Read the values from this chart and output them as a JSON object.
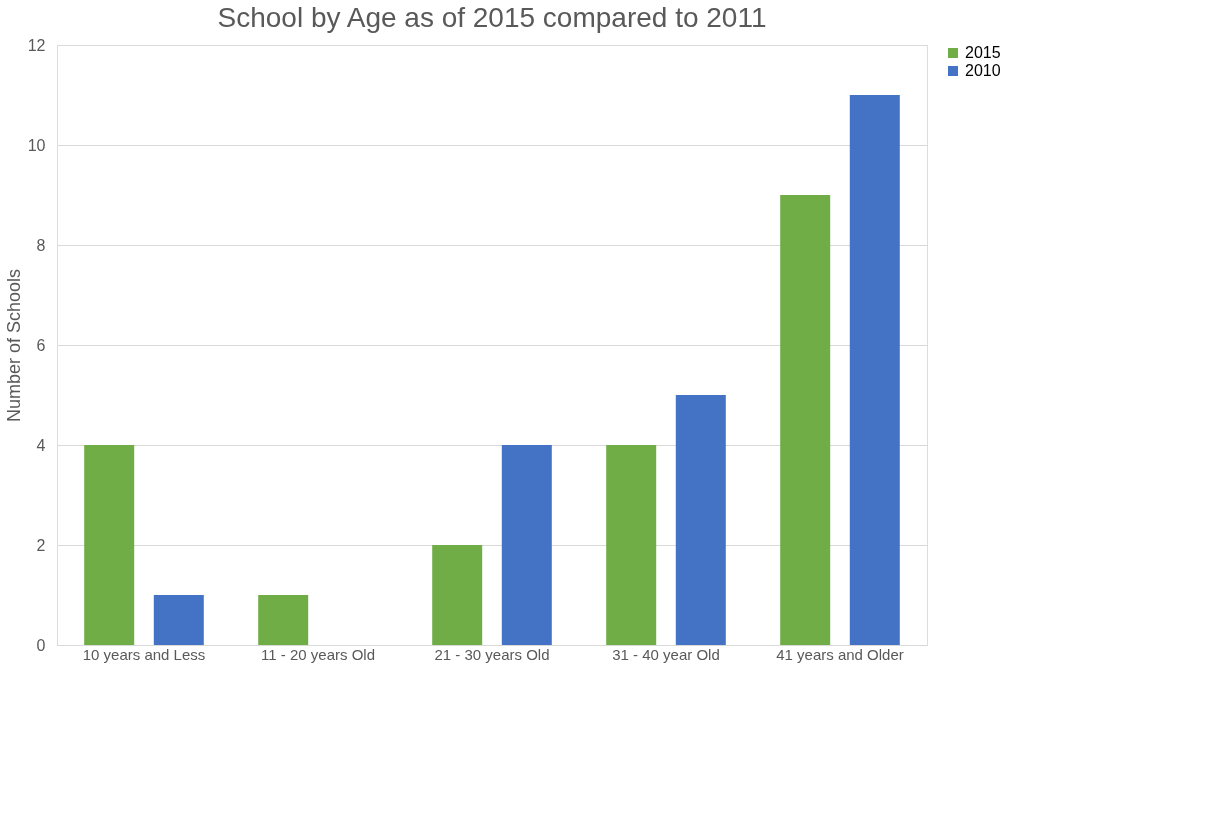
{
  "chart_data": {
    "type": "bar",
    "title": "School by Age as of 2015 compared to 2011",
    "ylabel": "Number of Schools",
    "categories": [
      "10 years and Less",
      "11 - 20 years Old",
      "21 - 30 years Old",
      "31 - 40 year Old",
      "41 years and Older"
    ],
    "series": [
      {
        "name": "2015",
        "color": "#70ad47",
        "values": [
          4,
          1,
          2,
          4,
          9
        ]
      },
      {
        "name": "2010",
        "color": "#4472c4",
        "values": [
          1,
          0,
          4,
          5,
          11
        ]
      }
    ],
    "ylim": [
      0,
      12
    ],
    "yticks": [
      0,
      2,
      4,
      6,
      8,
      10,
      12
    ],
    "grid": "y",
    "legend": "right"
  }
}
